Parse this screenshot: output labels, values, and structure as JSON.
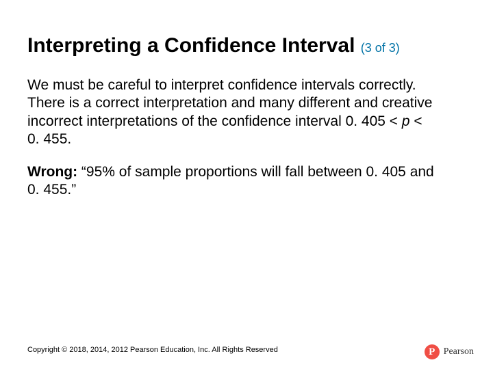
{
  "title": "Interpreting a Confidence Interval",
  "title_suffix": "(3 of 3)",
  "title_color": "#000000",
  "title_suffix_color": "#0072a6",
  "title_fontsize": 30,
  "suffix_fontsize": 18,
  "body_fontsize": 21,
  "paragraph1_part1": "We must be careful to interpret confidence intervals correctly. There is a correct interpretation and many different and creative incorrect interpretations of the confidence interval 0. 405 < ",
  "paragraph1_italic": "p",
  "paragraph1_part2": " < 0. 455.",
  "wrong_label": "Wrong:",
  "wrong_text": " “95% of sample proportions will fall between 0. 405 and 0. 455.”",
  "copyright": "Copyright © 2018, 2014, 2012 Pearson Education, Inc. All Rights Reserved",
  "logo_letter": "P",
  "logo_word": "Pearson",
  "logo_circle_color": "#f04e45",
  "background_color": "#ffffff"
}
